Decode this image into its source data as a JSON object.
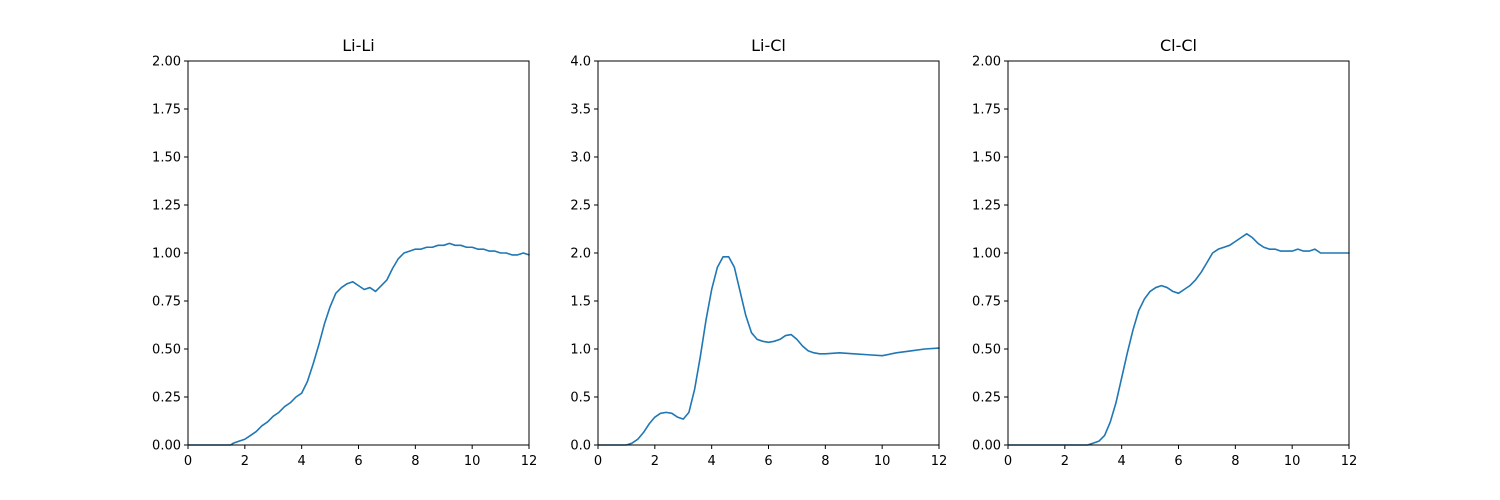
{
  "chart_data": [
    {
      "type": "line",
      "title": "Li-Li",
      "xlabel": "",
      "ylabel": "",
      "xlim": [
        0,
        12
      ],
      "ylim": [
        0,
        2
      ],
      "xticks": [
        "0",
        "2",
        "4",
        "6",
        "8",
        "10",
        "12"
      ],
      "yticks": [
        "0.00",
        "0.25",
        "0.50",
        "0.75",
        "1.00",
        "1.25",
        "1.50",
        "1.75",
        "2.00"
      ],
      "grid": false,
      "color": "#1f77b4",
      "series": [
        {
          "x": [
            0,
            1.5,
            1.6,
            1.8,
            2.0,
            2.2,
            2.4,
            2.6,
            2.8,
            3.0,
            3.2,
            3.4,
            3.6,
            3.8,
            4.0,
            4.2,
            4.4,
            4.6,
            4.8,
            5.0,
            5.2,
            5.4,
            5.6,
            5.8,
            6.0,
            6.2,
            6.4,
            6.6,
            6.8,
            7.0,
            7.2,
            7.4,
            7.6,
            7.8,
            8.0,
            8.2,
            8.4,
            8.6,
            8.8,
            9.0,
            9.2,
            9.4,
            9.6,
            9.8,
            10.0,
            10.2,
            10.4,
            10.6,
            10.8,
            11.0,
            11.2,
            11.4,
            11.6,
            11.8,
            12.0
          ],
          "values": [
            0,
            0,
            0.01,
            0.02,
            0.03,
            0.05,
            0.07,
            0.1,
            0.12,
            0.15,
            0.17,
            0.2,
            0.22,
            0.25,
            0.27,
            0.33,
            0.42,
            0.52,
            0.63,
            0.72,
            0.79,
            0.82,
            0.84,
            0.85,
            0.83,
            0.81,
            0.82,
            0.8,
            0.83,
            0.86,
            0.92,
            0.97,
            1.0,
            1.01,
            1.02,
            1.02,
            1.03,
            1.03,
            1.04,
            1.04,
            1.05,
            1.04,
            1.04,
            1.03,
            1.03,
            1.02,
            1.02,
            1.01,
            1.01,
            1.0,
            1.0,
            0.99,
            0.99,
            1.0,
            0.99
          ]
        }
      ]
    },
    {
      "type": "line",
      "title": "Li-Cl",
      "xlabel": "",
      "ylabel": "",
      "xlim": [
        0,
        12
      ],
      "ylim": [
        0,
        4
      ],
      "xticks": [
        "0",
        "2",
        "4",
        "6",
        "8",
        "10",
        "12"
      ],
      "yticks": [
        "0.0",
        "0.5",
        "1.0",
        "1.5",
        "2.0",
        "2.5",
        "3.0",
        "3.5",
        "4.0"
      ],
      "grid": false,
      "color": "#1f77b4",
      "series": [
        {
          "x": [
            0,
            1.0,
            1.2,
            1.4,
            1.6,
            1.8,
            2.0,
            2.2,
            2.4,
            2.6,
            2.8,
            3.0,
            3.2,
            3.4,
            3.6,
            3.8,
            4.0,
            4.2,
            4.4,
            4.6,
            4.8,
            5.0,
            5.2,
            5.4,
            5.6,
            5.8,
            6.0,
            6.2,
            6.4,
            6.6,
            6.8,
            7.0,
            7.2,
            7.4,
            7.6,
            7.8,
            8.0,
            8.5,
            9.0,
            9.5,
            10.0,
            10.5,
            11.0,
            11.5,
            12.0
          ],
          "values": [
            0,
            0,
            0.02,
            0.06,
            0.13,
            0.22,
            0.29,
            0.33,
            0.34,
            0.33,
            0.29,
            0.27,
            0.34,
            0.58,
            0.92,
            1.3,
            1.62,
            1.85,
            1.96,
            1.96,
            1.85,
            1.6,
            1.35,
            1.17,
            1.1,
            1.08,
            1.07,
            1.08,
            1.1,
            1.14,
            1.15,
            1.1,
            1.03,
            0.98,
            0.96,
            0.95,
            0.95,
            0.96,
            0.95,
            0.94,
            0.93,
            0.96,
            0.98,
            1.0,
            1.01
          ]
        }
      ]
    },
    {
      "type": "line",
      "title": "Cl-Cl",
      "xlabel": "",
      "ylabel": "",
      "xlim": [
        0,
        12
      ],
      "ylim": [
        0,
        2
      ],
      "xticks": [
        "0",
        "2",
        "4",
        "6",
        "8",
        "10",
        "12"
      ],
      "yticks": [
        "0.00",
        "0.25",
        "0.50",
        "0.75",
        "1.00",
        "1.25",
        "1.50",
        "1.75",
        "2.00"
      ],
      "grid": false,
      "color": "#1f77b4",
      "series": [
        {
          "x": [
            0,
            2.8,
            3.0,
            3.2,
            3.4,
            3.6,
            3.8,
            4.0,
            4.2,
            4.4,
            4.6,
            4.8,
            5.0,
            5.2,
            5.4,
            5.6,
            5.8,
            6.0,
            6.2,
            6.4,
            6.6,
            6.8,
            7.0,
            7.2,
            7.4,
            7.6,
            7.8,
            8.0,
            8.2,
            8.4,
            8.6,
            8.8,
            9.0,
            9.2,
            9.4,
            9.6,
            9.8,
            10.0,
            10.2,
            10.4,
            10.6,
            10.8,
            11.0,
            11.2,
            11.4,
            11.6,
            11.8,
            12.0
          ],
          "values": [
            0,
            0,
            0.01,
            0.02,
            0.05,
            0.12,
            0.22,
            0.35,
            0.48,
            0.6,
            0.7,
            0.76,
            0.8,
            0.82,
            0.83,
            0.82,
            0.8,
            0.79,
            0.81,
            0.83,
            0.86,
            0.9,
            0.95,
            1.0,
            1.02,
            1.03,
            1.04,
            1.06,
            1.08,
            1.1,
            1.08,
            1.05,
            1.03,
            1.02,
            1.02,
            1.01,
            1.01,
            1.01,
            1.02,
            1.01,
            1.01,
            1.02,
            1.0,
            1.0,
            1.0,
            1.0,
            1.0,
            1.0
          ]
        }
      ]
    }
  ]
}
